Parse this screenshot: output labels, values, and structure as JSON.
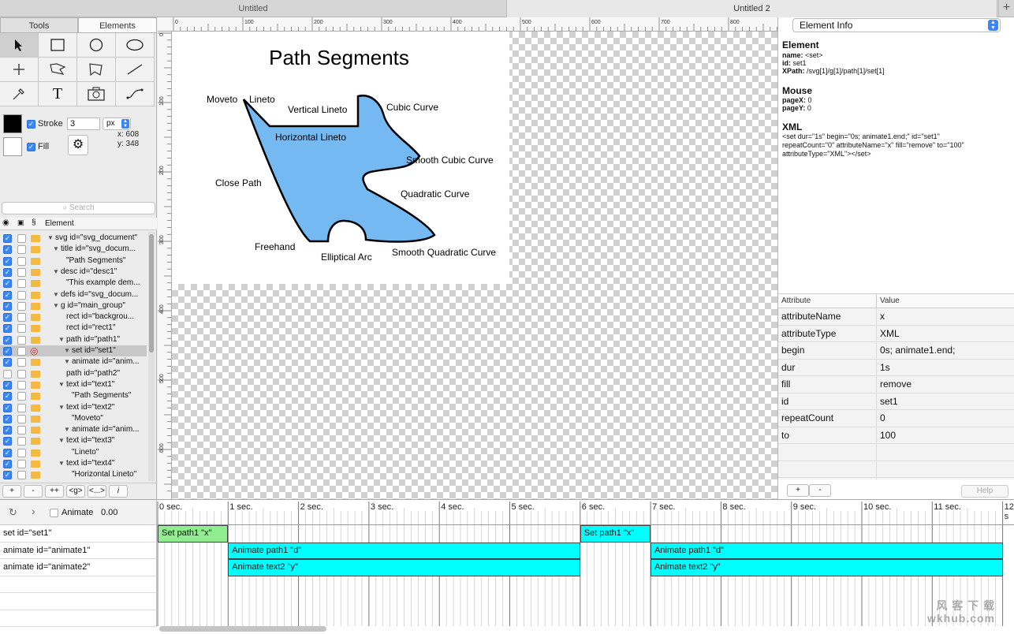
{
  "document_tabs": [
    {
      "label": "Untitled",
      "active": false
    },
    {
      "label": "Untitled 2",
      "active": true
    }
  ],
  "left_panel": {
    "tabs": [
      "Tools",
      "Elements"
    ],
    "active_tab": "Elements",
    "tools": [
      "arrow-select-icon",
      "rectangle-icon",
      "circle-icon",
      "ellipse-icon",
      "crosshair-point-icon",
      "polyline-icon",
      "polygon-icon",
      "line-icon",
      "eyedropper-icon",
      "text-icon",
      "image-camera-icon",
      "path-icon"
    ],
    "stroke": {
      "label": "Stroke",
      "checked": true,
      "value": "3",
      "unit": "px",
      "color": "#000000"
    },
    "fill": {
      "label": "Fill",
      "checked": true,
      "color": "#ffffff"
    },
    "coords": {
      "x": "x: 608",
      "y": "y: 348"
    },
    "search_placeholder": "Search",
    "tree_header": {
      "eye": "👁",
      "lock": "🔒",
      "section": "§",
      "element": "Element"
    },
    "tree": [
      {
        "label": "svg id=\"svg_document\"",
        "indent": 0,
        "toggle": true,
        "checked": true
      },
      {
        "label": "title id=\"svg_docum...",
        "indent": 1,
        "toggle": true,
        "checked": true
      },
      {
        "label": "\"Path Segments\"",
        "indent": 2,
        "toggle": false,
        "checked": true
      },
      {
        "label": "desc id=\"desc1\"",
        "indent": 1,
        "toggle": true,
        "checked": true
      },
      {
        "label": "\"This example dem...",
        "indent": 2,
        "toggle": false,
        "checked": true
      },
      {
        "label": "defs id=\"svg_docum...",
        "indent": 1,
        "toggle": true,
        "checked": true
      },
      {
        "label": "g id=\"main_group\"",
        "indent": 1,
        "toggle": true,
        "checked": true
      },
      {
        "label": "rect id=\"backgrou...",
        "indent": 2,
        "toggle": false,
        "checked": true
      },
      {
        "label": "rect id=\"rect1\"",
        "indent": 2,
        "toggle": false,
        "checked": true
      },
      {
        "label": "path id=\"path1\"",
        "indent": 2,
        "toggle": true,
        "checked": true
      },
      {
        "label": "set id=\"set1\"",
        "indent": 3,
        "toggle": true,
        "checked": true,
        "selected": true
      },
      {
        "label": "animate id=\"anim...",
        "indent": 3,
        "toggle": true,
        "checked": true
      },
      {
        "label": "path id=\"path2\"",
        "indent": 2,
        "toggle": false,
        "checked": false
      },
      {
        "label": "text id=\"text1\"",
        "indent": 2,
        "toggle": true,
        "checked": true
      },
      {
        "label": "\"Path Segments\"",
        "indent": 3,
        "toggle": false,
        "checked": true
      },
      {
        "label": "text id=\"text2\"",
        "indent": 2,
        "toggle": true,
        "checked": true
      },
      {
        "label": "\"Moveto\"",
        "indent": 3,
        "toggle": false,
        "checked": true
      },
      {
        "label": "animate id=\"anim...",
        "indent": 3,
        "toggle": true,
        "checked": true
      },
      {
        "label": "text id=\"text3\"",
        "indent": 2,
        "toggle": true,
        "checked": true
      },
      {
        "label": "\"Lineto\"",
        "indent": 3,
        "toggle": false,
        "checked": true
      },
      {
        "label": "text id=\"text4\"",
        "indent": 2,
        "toggle": true,
        "checked": true
      },
      {
        "label": "\"Horizontal Lineto\"",
        "indent": 3,
        "toggle": false,
        "checked": true
      }
    ],
    "bottom_buttons": [
      "+",
      "-",
      "++",
      "<g>",
      "<...>",
      "𝑖"
    ]
  },
  "rulers": {
    "top": [
      "0",
      "100",
      "200",
      "300",
      "400",
      "500",
      "600",
      "700",
      "800"
    ],
    "left": [
      "0",
      "100",
      "200",
      "300",
      "400",
      "500",
      "600"
    ]
  },
  "drawing": {
    "title": "Path Segments",
    "fill_color": "#74b9f2",
    "labels": {
      "moveto": "Moveto",
      "lineto": "Lineto",
      "vertical": "Vertical Lineto",
      "cubic": "Cubic Curve",
      "horizontal": "Horizontal Lineto",
      "smooth_cubic": "Smooth Cubic Curve",
      "close": "Close Path",
      "quadratic": "Quadratic Curve",
      "freehand": "Freehand",
      "arc": "Elliptical Arc",
      "smooth_quad": "Smooth Quadratic Curve"
    }
  },
  "right_panel": {
    "selector": "Element Info",
    "element_heading": "Element",
    "element_name": "<set>",
    "element_id": "set1",
    "element_xpath": "/svg[1]/g[1]/path[1]/set[1]",
    "name_label": "name:",
    "id_label": "id:",
    "xpath_label": "XPath:",
    "mouse_heading": "Mouse",
    "pagex_label": "pageX:",
    "pagex": "0",
    "pagey_label": "pageY:",
    "pagey": "0",
    "xml_heading": "XML",
    "xml_line1": "<set dur=\"1s\" begin=\"0s; animate1.end;\" id=\"set1\"",
    "xml_line2": "repeatCount=\"0\" attributeName=\"x\" fill=\"remove\" to=\"100\"",
    "xml_line3": "attributeType=\"XML\"></set>",
    "table_headers": [
      "Attribute",
      "Value"
    ],
    "attributes": [
      {
        "k": "attributeName",
        "v": "x"
      },
      {
        "k": "attributeType",
        "v": "XML"
      },
      {
        "k": "begin",
        "v": "0s; animate1.end;"
      },
      {
        "k": "dur",
        "v": "1s"
      },
      {
        "k": "fill",
        "v": "remove"
      },
      {
        "k": "id",
        "v": "set1"
      },
      {
        "k": "repeatCount",
        "v": "0"
      },
      {
        "k": "to",
        "v": "100"
      }
    ],
    "buttons": [
      "+",
      "-"
    ],
    "help": "Help"
  },
  "timeline": {
    "animate_label": "Animate",
    "time": "0.00",
    "rows": [
      "set id=\"set1\"",
      "animate id=\"animate1\"",
      "animate id=\"animate2\""
    ],
    "ticks": [
      "0 sec.",
      "1 sec.",
      "2 sec.",
      "3 sec.",
      "4 sec.",
      "5 sec.",
      "6 sec.",
      "7 sec.",
      "8 sec.",
      "9 sec.",
      "10 sec.",
      "11 sec.",
      "12 s"
    ],
    "bars": [
      {
        "row": 0,
        "start": 0,
        "end": 1,
        "label": "Set path1 \"x\"",
        "color": "#90ee90"
      },
      {
        "row": 0,
        "start": 6,
        "end": 7,
        "label": "Set path1 \"x\"",
        "color": "#00ffff"
      },
      {
        "row": 1,
        "start": 1,
        "end": 6,
        "label": "Animate path1 \"d\"",
        "color": "#00ffff"
      },
      {
        "row": 1,
        "start": 7,
        "end": 12,
        "label": "Animate path1 \"d\"",
        "color": "#00ffff"
      },
      {
        "row": 2,
        "start": 1,
        "end": 6,
        "label": "Animate text2 \"y\"",
        "color": "#00ffff"
      },
      {
        "row": 2,
        "start": 7,
        "end": 12,
        "label": "Animate text2 \"y\"",
        "color": "#00ffff"
      }
    ]
  },
  "watermark": {
    "line1": "风 客 下 载",
    "line2": "wkhub.com"
  }
}
